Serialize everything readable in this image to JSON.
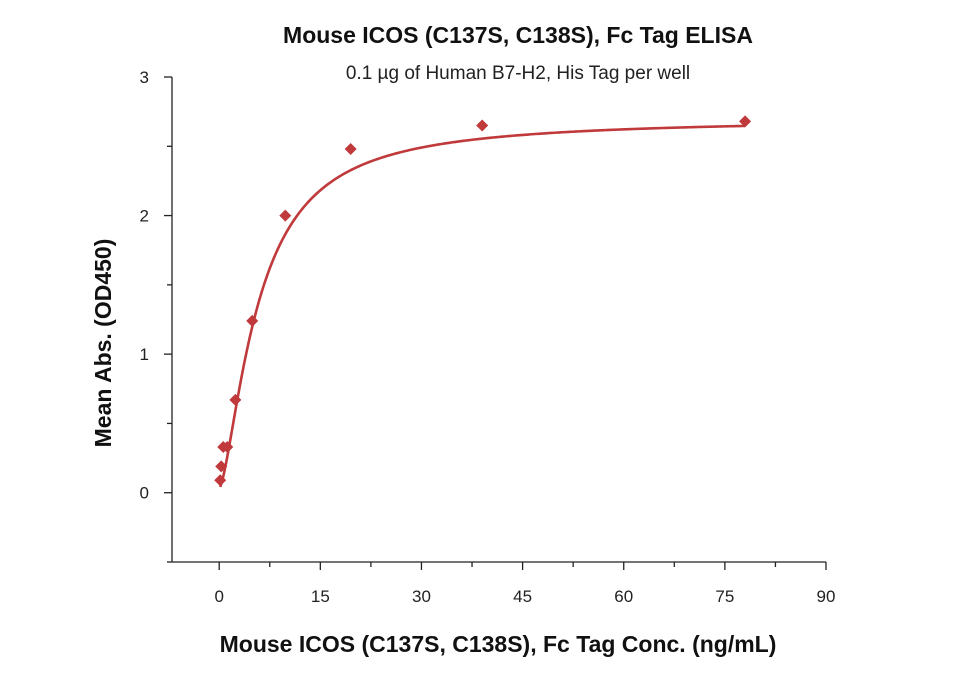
{
  "chart_data": {
    "type": "scatter",
    "title": "Mouse ICOS (C137S, C138S), Fc Tag ELISA",
    "subtitle": "0.1 µg of Human B7-H2, His Tag per well",
    "xlabel": "Mouse ICOS (C137S, C138S), Fc Tag Conc. (ng/mL)",
    "ylabel": "Mean Abs. (OD450)",
    "xlim": [
      -7,
      90
    ],
    "ylim": [
      -0.5,
      3
    ],
    "x_ticks": [
      0,
      15,
      30,
      45,
      60,
      75,
      90
    ],
    "y_ticks": [
      0,
      1,
      2,
      3
    ],
    "grid": false,
    "color": "#c0393b",
    "series": [
      {
        "points": [
          [
            0.15,
            0.09
          ],
          [
            0.3,
            0.19
          ],
          [
            0.6,
            0.33
          ],
          [
            1.2,
            0.33
          ],
          [
            2.4,
            0.67
          ],
          [
            4.9,
            1.24
          ],
          [
            9.8,
            2.0
          ],
          [
            19.5,
            2.48
          ],
          [
            39,
            2.65
          ],
          [
            78,
            2.68
          ]
        ],
        "fit_curve": {
          "model": "4PL",
          "bottom": 0.03,
          "top": 2.7,
          "ec50": 5.8,
          "hill": 1.5
        }
      }
    ]
  }
}
